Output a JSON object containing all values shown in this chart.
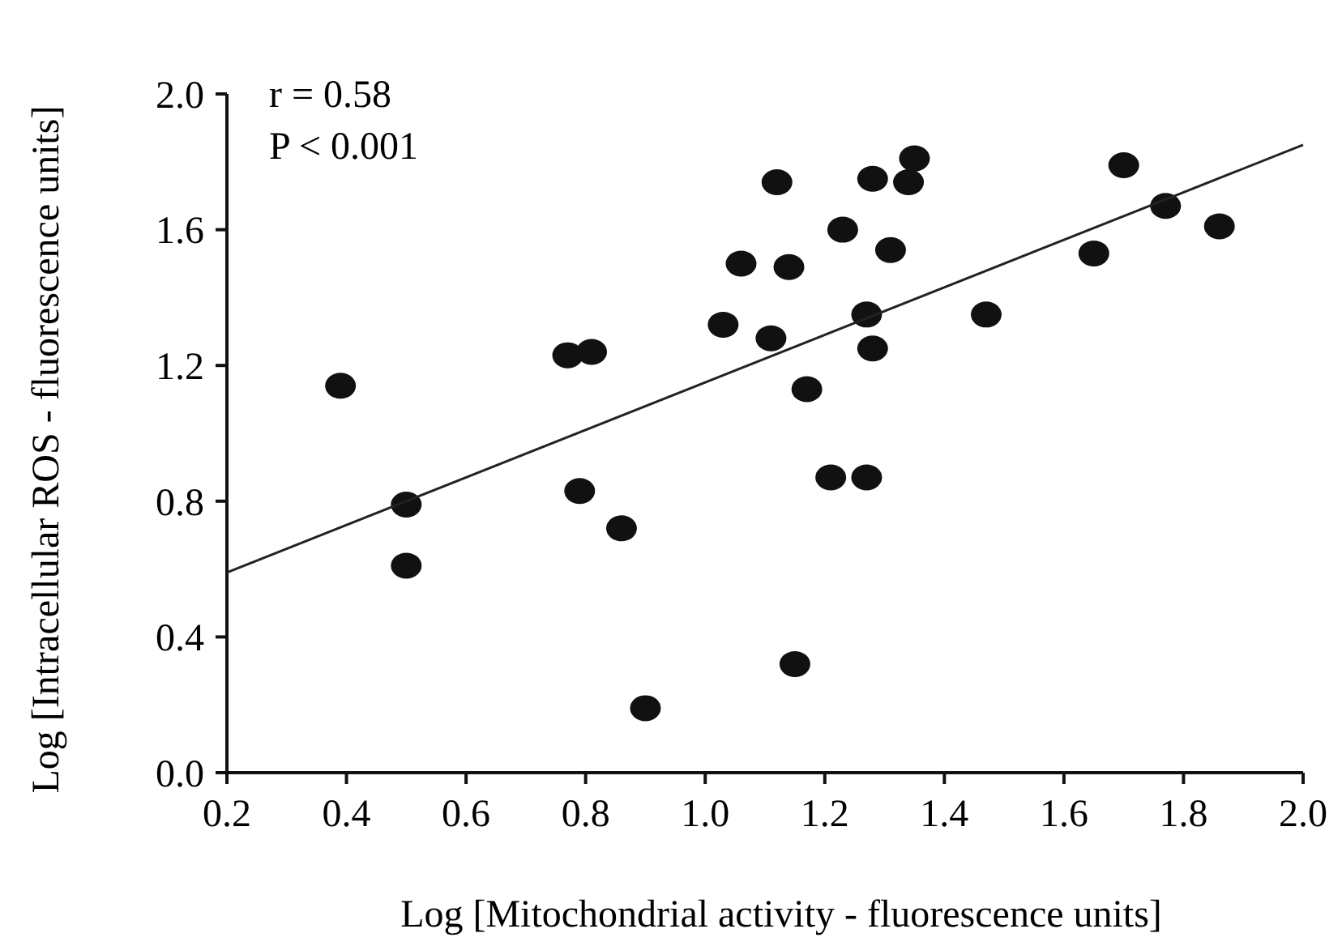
{
  "chart_data": {
    "type": "scatter",
    "xlabel": "Log [Mitochondrial activity - fluorescence units]",
    "ylabel": "Log [Intracellular ROS - fluorescence units]",
    "annotations": [
      "r = 0.58",
      "P < 0.001"
    ],
    "xlim": [
      0.2,
      2.0
    ],
    "xticks": [
      0.2,
      0.4,
      0.6,
      0.8,
      {
        "value": 1,
        "label": "1.0"
      },
      1.2,
      1.4,
      1.6,
      1.8,
      {
        "value": 2,
        "label": "2.0"
      }
    ],
    "ylim": [
      0.0,
      2.0
    ],
    "yticks": [
      {
        "value": 0,
        "label": "0.0"
      },
      0.4,
      0.8,
      1.2,
      1.6,
      {
        "value": 2,
        "label": "2.0"
      }
    ],
    "grid": false,
    "series": [
      {
        "color": "#111111",
        "marker": "circle",
        "x": [
          0.39,
          0.5,
          0.5,
          0.77,
          0.81,
          0.79,
          0.86,
          0.9,
          1.03,
          1.06,
          1.11,
          1.12,
          1.14,
          1.15,
          1.17,
          1.21,
          1.23,
          1.27,
          1.27,
          1.28,
          1.28,
          1.31,
          1.34,
          1.35,
          1.47,
          1.65,
          1.7,
          1.77,
          1.86
        ],
        "values": [
          1.14,
          0.79,
          0.61,
          1.23,
          1.24,
          0.83,
          0.72,
          0.19,
          1.32,
          1.5,
          1.28,
          1.74,
          1.49,
          0.32,
          1.13,
          0.87,
          1.6,
          0.87,
          1.35,
          1.75,
          1.25,
          1.54,
          1.74,
          1.81,
          1.35,
          1.53,
          1.79,
          1.67,
          1.61
        ]
      },
      {
        "type": "line",
        "color": "#222222",
        "x": [
          0.2,
          2.0
        ],
        "values": [
          0.59,
          1.85
        ],
        "line_style": "solid"
      }
    ]
  }
}
